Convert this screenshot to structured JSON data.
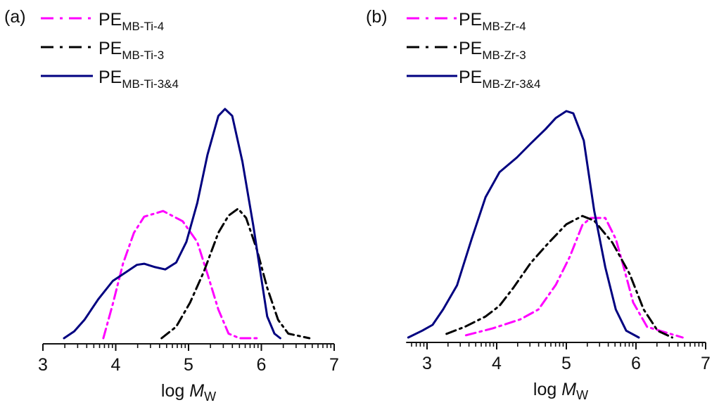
{
  "chart_data": [
    {
      "type": "line",
      "panel_label": "(a)",
      "xlabel_prefix": "log ",
      "xlabel_italic": "M",
      "xlabel_sub": "w",
      "ylabel": "",
      "xlim": [
        3,
        7
      ],
      "xticks": [
        3,
        4,
        5,
        6,
        7
      ],
      "minor_ticks": "log-decade",
      "y_axis_visible": false,
      "legend_position": "top-left",
      "series": [
        {
          "name": "PE",
          "sub": "MB-Ti-4",
          "color": "#ff00ff",
          "style": "dash-dot",
          "x": [
            3.83,
            3.96,
            4.1,
            4.25,
            4.39,
            4.65,
            4.92,
            5.12,
            5.26,
            5.41,
            5.55,
            5.7,
            5.94
          ],
          "y": [
            0,
            0.15,
            0.325,
            0.46,
            0.53,
            0.555,
            0.51,
            0.42,
            0.28,
            0.125,
            0.02,
            0,
            0
          ]
        },
        {
          "name": "PE",
          "sub": "MB-Ti-3",
          "color": "#000000",
          "style": "dash-dot",
          "x": [
            4.63,
            4.83,
            5.02,
            5.21,
            5.41,
            5.55,
            5.68,
            5.79,
            5.94,
            6.08,
            6.23,
            6.37,
            6.66
          ],
          "y": [
            0,
            0.05,
            0.155,
            0.29,
            0.46,
            0.535,
            0.565,
            0.525,
            0.385,
            0.22,
            0.08,
            0.02,
            0
          ]
        },
        {
          "name": "PE",
          "sub": "MB-Ti-3&4",
          "color": "#000080",
          "style": "solid",
          "x": [
            3.29,
            3.43,
            3.57,
            3.76,
            3.96,
            4.15,
            4.29,
            4.39,
            4.54,
            4.68,
            4.83,
            4.97,
            5.12,
            5.26,
            5.41,
            5.5,
            5.6,
            5.74,
            5.89,
            5.99,
            6.08,
            6.18,
            6.26
          ],
          "y": [
            0,
            0.03,
            0.08,
            0.17,
            0.25,
            0.29,
            0.32,
            0.325,
            0.31,
            0.3,
            0.33,
            0.42,
            0.59,
            0.8,
            0.97,
            1.0,
            0.97,
            0.77,
            0.49,
            0.28,
            0.095,
            0.02,
            0
          ]
        }
      ]
    },
    {
      "type": "line",
      "panel_label": "(b)",
      "xlabel_prefix": "log ",
      "xlabel_italic": "M",
      "xlabel_sub": "w",
      "ylabel": "",
      "xlim": [
        2.7,
        7
      ],
      "xticks": [
        3,
        4,
        5,
        6,
        7
      ],
      "minor_ticks": "log-decade",
      "y_axis_visible": false,
      "legend_position": "top-left",
      "series": [
        {
          "name": "PE",
          "sub": "MB-Zr-4",
          "color": "#ff00ff",
          "style": "dash-dot",
          "x": [
            3.56,
            3.94,
            4.34,
            4.6,
            4.85,
            5.05,
            5.23,
            5.35,
            5.56,
            5.71,
            5.81,
            5.96,
            6.16,
            6.67
          ],
          "y": [
            0.01,
            0.04,
            0.08,
            0.124,
            0.233,
            0.357,
            0.497,
            0.528,
            0.528,
            0.435,
            0.326,
            0.155,
            0.047,
            0
          ]
        },
        {
          "name": "PE",
          "sub": "MB-Zr-3",
          "color": "#000000",
          "style": "dash-dot",
          "x": [
            3.28,
            3.54,
            3.84,
            4.04,
            4.24,
            4.49,
            4.75,
            5.0,
            5.23,
            5.4,
            5.66,
            5.91,
            6.11,
            6.31,
            6.52
          ],
          "y": [
            0.016,
            0.047,
            0.093,
            0.14,
            0.22,
            0.33,
            0.42,
            0.5,
            0.537,
            0.516,
            0.42,
            0.28,
            0.124,
            0.03,
            0
          ]
        },
        {
          "name": "PE",
          "sub": "MB-Zr-3&4",
          "color": "#000080",
          "style": "solid",
          "x": [
            2.73,
            2.93,
            3.08,
            3.23,
            3.43,
            3.64,
            3.84,
            4.04,
            4.29,
            4.49,
            4.7,
            4.85,
            5.0,
            5.1,
            5.25,
            5.4,
            5.56,
            5.71,
            5.86,
            6.04
          ],
          "y": [
            0,
            0.03,
            0.056,
            0.124,
            0.23,
            0.435,
            0.62,
            0.73,
            0.795,
            0.857,
            0.92,
            0.97,
            1.0,
            0.99,
            0.87,
            0.56,
            0.31,
            0.124,
            0.03,
            0
          ]
        }
      ]
    }
  ]
}
